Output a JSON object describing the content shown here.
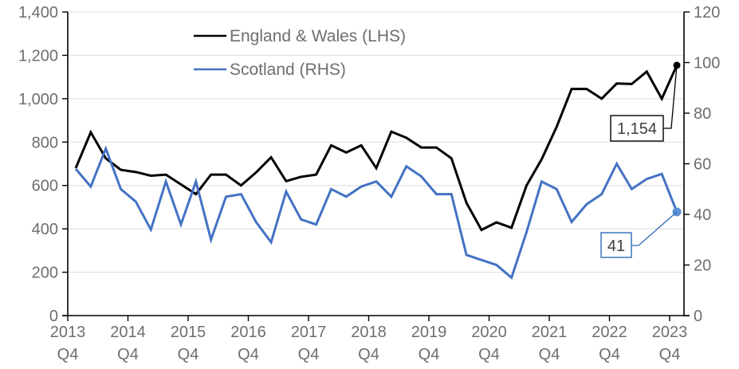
{
  "chart_data": {
    "type": "line",
    "title": "",
    "xlabel": "",
    "ylabel": "",
    "y2label": "",
    "ylim": [
      0,
      1400
    ],
    "y2lim": [
      0,
      120
    ],
    "yticks": [
      "0",
      "200",
      "400",
      "600",
      "800",
      "1,000",
      "1,200",
      "1,400"
    ],
    "y2ticks": [
      "0",
      "20",
      "40",
      "60",
      "80",
      "100",
      "120"
    ],
    "xticks": [
      {
        "year": "2013",
        "quarter": "Q4"
      },
      {
        "year": "2014",
        "quarter": "Q4"
      },
      {
        "year": "2015",
        "quarter": "Q4"
      },
      {
        "year": "2016",
        "quarter": "Q4"
      },
      {
        "year": "2017",
        "quarter": "Q4"
      },
      {
        "year": "2018",
        "quarter": "Q4"
      },
      {
        "year": "2019",
        "quarter": "Q4"
      },
      {
        "year": "2020",
        "quarter": "Q4"
      },
      {
        "year": "2021",
        "quarter": "Q4"
      },
      {
        "year": "2022",
        "quarter": "Q4"
      },
      {
        "year": "2023",
        "quarter": "Q4"
      }
    ],
    "grid": true,
    "legend_position": "top-center",
    "series": [
      {
        "name": "England & Wales (LHS)",
        "axis": "left",
        "color": "#000000",
        "values": [
          680,
          845,
          725,
          672,
          662,
          645,
          650,
          605,
          560,
          650,
          650,
          600,
          660,
          730,
          620,
          640,
          650,
          785,
          752,
          785,
          680,
          848,
          820,
          775,
          775,
          725,
          520,
          395,
          430,
          405,
          600,
          720,
          870,
          1045,
          1045,
          1000,
          1070,
          1068,
          1125,
          1000,
          1154
        ]
      },
      {
        "name": "Scotland (RHS)",
        "axis": "right",
        "color": "#4472c4",
        "values": [
          58,
          51,
          66,
          50,
          45,
          34,
          53,
          36,
          53,
          30,
          47,
          48,
          37,
          29,
          49,
          38,
          36,
          50,
          47,
          51,
          53,
          47,
          59,
          55,
          48,
          48,
          24,
          22,
          20,
          15,
          33,
          53,
          50,
          37,
          44,
          48,
          60,
          50,
          54,
          56,
          41
        ]
      }
    ],
    "annotations": [
      {
        "series": "England & Wales (LHS)",
        "label": "1,154"
      },
      {
        "series": "Scotland (RHS)",
        "label": "41"
      }
    ]
  }
}
